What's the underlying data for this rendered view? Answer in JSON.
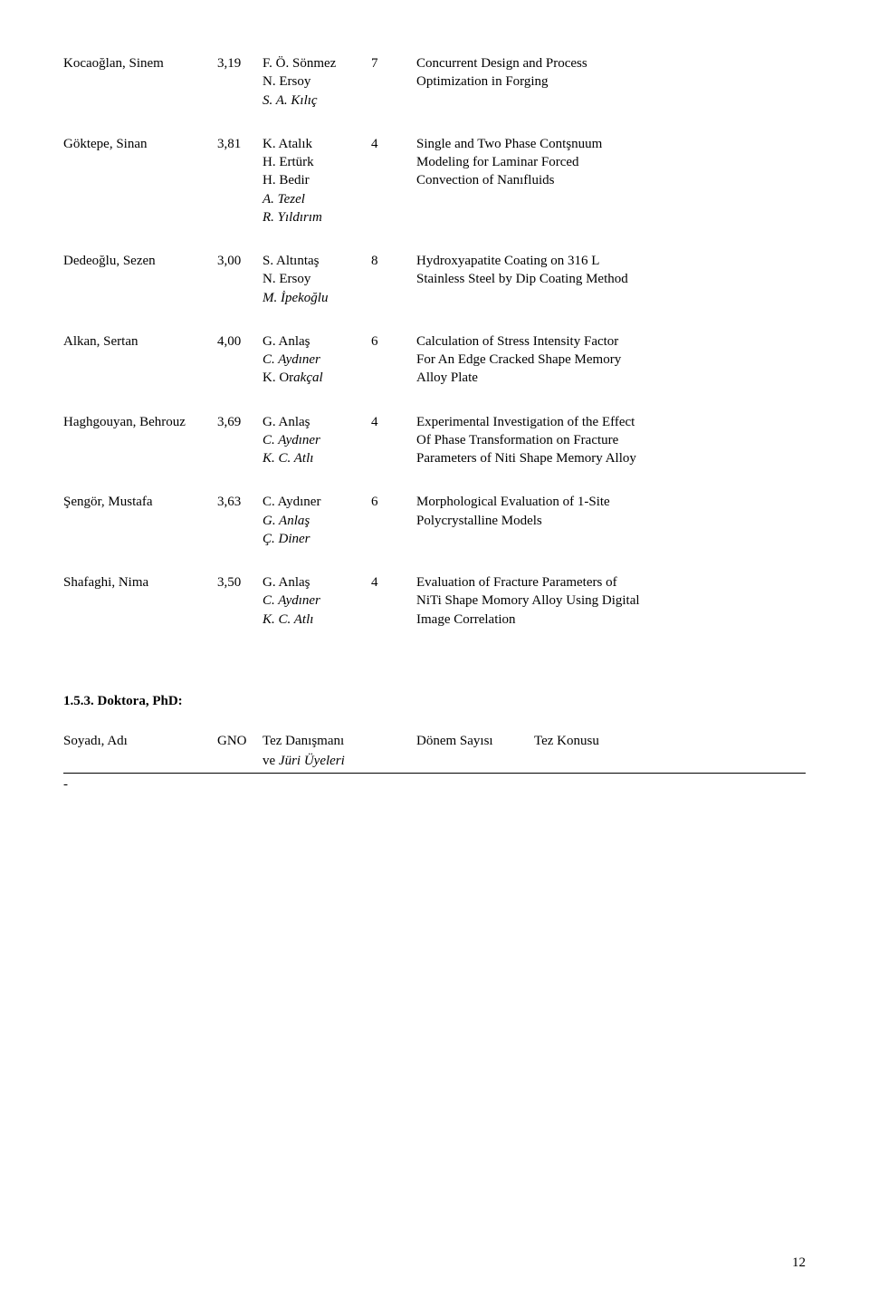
{
  "entries": [
    {
      "name": "Kocaoğlan, Sinem",
      "gno": "3,19",
      "advisors": [
        "F. Ö. Sönmez",
        "N. Ersoy"
      ],
      "jury_italic": [
        "S. A. Kılıç"
      ],
      "num": "7",
      "desc": [
        "Concurrent Design and Process",
        "Optimization in Forging"
      ]
    },
    {
      "name": "Göktepe, Sinan",
      "gno": "3,81",
      "advisors": [
        "K. Atalık",
        "H. Ertürk",
        "H. Bedir"
      ],
      "jury_italic": [
        "A. Tezel",
        "R. Yıldırım"
      ],
      "num": "4",
      "desc": [
        "Single and Two Phase Contşnuum",
        "Modeling for Laminar Forced",
        "Convection of Nanıfluids"
      ]
    },
    {
      "name": "Dedeoğlu, Sezen",
      "gno": "3,00",
      "advisors": [
        "S. Altıntaş",
        "N. Ersoy"
      ],
      "jury_italic": [
        "M. İpekoğlu"
      ],
      "num": "8",
      "desc": [
        "Hydroxyapatite Coating on 316 L",
        "Stainless Steel by Dip Coating Method"
      ]
    },
    {
      "name": "Alkan, Sertan",
      "gno": "4,00",
      "advisors": [
        "G. Anlaş"
      ],
      "jury_italic": [
        "C. Aydıner"
      ],
      "jury_mixed": [
        {
          "plain": "K. Or",
          "italic": "akçal"
        }
      ],
      "num": "6",
      "desc": [
        "Calculation of Stress Intensity Factor",
        " For An Edge Cracked Shape Memory",
        "Alloy Plate"
      ]
    },
    {
      "name": "Haghgouyan, Behrouz",
      "gno": "3,69",
      "advisors": [
        "G. Anlaş"
      ],
      "jury_italic": [
        "C. Aydıner",
        "K. C. Atlı"
      ],
      "num": "4",
      "desc": [
        "Experimental Investigation of the Effect",
        "Of Phase Transformation on Fracture",
        "Parameters of Niti Shape Memory Alloy"
      ]
    },
    {
      "name": "Şengör, Mustafa",
      "gno": "3,63",
      "advisors": [
        "C. Aydıner"
      ],
      "jury_italic": [
        "G. Anlaş",
        "Ç. Diner"
      ],
      "num": "6",
      "desc": [
        " Morphological Evaluation of 1-Site",
        " Polycrystalline Models"
      ]
    },
    {
      "name": "Shafaghi, Nima",
      "gno": "3,50",
      "advisors": [
        "G. Anlaş"
      ],
      "jury_italic": [
        "C. Aydıner",
        "K. C. Atlı"
      ],
      "num": "4",
      "desc": [
        "Evaluation of Fracture Parameters of",
        "NiTi Shape Momory Alloy Using Digital",
        "Image Correlation"
      ]
    }
  ],
  "section_heading": "1.5.3. Doktora, PhD:",
  "header": {
    "c1": "Soyadı, Adı",
    "c2": "GNO",
    "c3a": "Tez Danışmanı",
    "c3b": "ve",
    "c3b_italic": "Jüri Üyeleri",
    "c4": "Dönem Sayısı",
    "c5": "Tez Konusu"
  },
  "dash": "-",
  "page_number": "12"
}
